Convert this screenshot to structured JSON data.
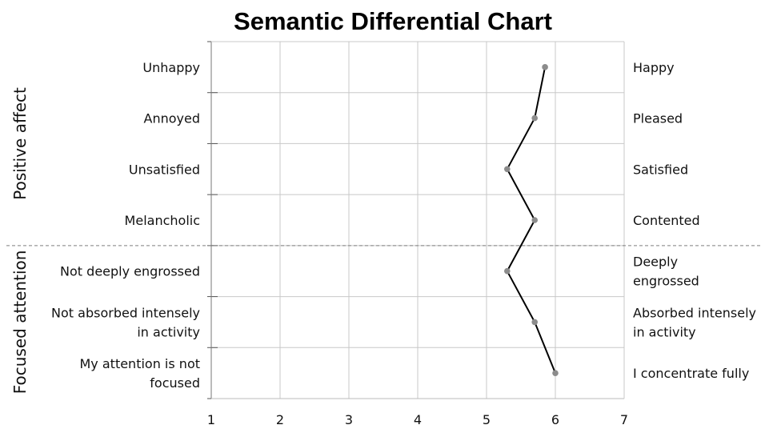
{
  "chart_data": {
    "type": "line",
    "title": "Semantic Differential Chart",
    "xlim": [
      1,
      7
    ],
    "x_ticks": [
      "1",
      "2",
      "3",
      "4",
      "5",
      "6",
      "7"
    ],
    "grid": true,
    "groups": [
      {
        "name": "Positive affect",
        "items": [
          0,
          1,
          2,
          3
        ]
      },
      {
        "name": "Focused attention",
        "items": [
          4,
          5,
          6
        ]
      }
    ],
    "items": [
      {
        "left": [
          "Unhappy"
        ],
        "right": [
          "Happy"
        ],
        "value": 5.85
      },
      {
        "left": [
          "Annoyed"
        ],
        "right": [
          "Pleased"
        ],
        "value": 5.7
      },
      {
        "left": [
          "Unsatisfied"
        ],
        "right": [
          "Satisfied"
        ],
        "value": 5.3
      },
      {
        "left": [
          "Melancholic"
        ],
        "right": [
          "Contented"
        ],
        "value": 5.7
      },
      {
        "left": [
          "Not deeply engrossed"
        ],
        "right": [
          "Deeply",
          "engrossed"
        ],
        "value": 5.3
      },
      {
        "left": [
          "Not absorbed intensely",
          "in activity"
        ],
        "right": [
          "Absorbed intensely",
          "in activity"
        ],
        "value": 5.7
      },
      {
        "left": [
          "My attention is not",
          "focused"
        ],
        "right": [
          "I concentrate fully"
        ],
        "value": 6.0
      }
    ],
    "colors": {
      "line": "#000000",
      "marker": "#8c8c8c",
      "grid": "#c8c8c8",
      "divider": "#7f7f7f"
    }
  }
}
